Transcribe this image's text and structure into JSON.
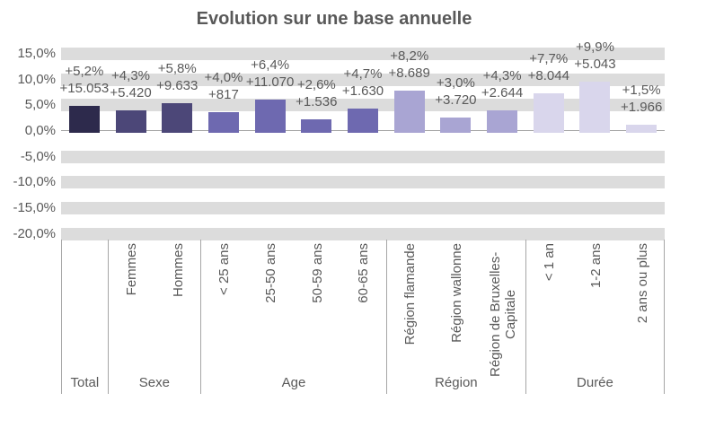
{
  "chart_data": {
    "type": "bar",
    "title": "Evolution sur une base annuelle",
    "ylabel": "",
    "ylim": [
      -20,
      15
    ],
    "ytick_step": 5,
    "yticks": [
      "15,0%",
      "10,0%",
      "5,0%",
      "0,0%",
      "-5,0%",
      "-10,0%",
      "-15,0%",
      "-20,0%"
    ],
    "grid": "horizontal-bands",
    "legend": "none",
    "colors": {
      "band": "#dcdcdc",
      "axis_line": "#a6a6a6",
      "separator_line": "#a6a6a6",
      "text": "#595959"
    },
    "groups": [
      {
        "label": "Total",
        "color": "#2d2a4c",
        "bars": [
          {
            "category": "",
            "pct": 5.2,
            "pct_label": "+5,2%",
            "count_label": "+15.053"
          }
        ]
      },
      {
        "label": "Sexe",
        "color": "#4c4778",
        "bars": [
          {
            "category": "Femmes",
            "pct": 4.3,
            "pct_label": "+4,3%",
            "count_label": "+5.420"
          },
          {
            "category": "Hommes",
            "pct": 5.8,
            "pct_label": "+5,8%",
            "count_label": "+9.633"
          }
        ]
      },
      {
        "label": "Age",
        "color": "#6e69b0",
        "bars": [
          {
            "category": "< 25 ans",
            "pct": 4.0,
            "pct_label": "+4,0%",
            "count_label": "+817"
          },
          {
            "category": "25-50 ans",
            "pct": 6.4,
            "pct_label": "+6,4%",
            "count_label": "+11.070"
          },
          {
            "category": "50-59 ans",
            "pct": 2.6,
            "pct_label": "+2,6%",
            "count_label": "+1.536"
          },
          {
            "category": "60-65 ans",
            "pct": 4.7,
            "pct_label": "+4,7%",
            "count_label": "+1.630"
          }
        ]
      },
      {
        "label": "Région",
        "color": "#a9a5d3",
        "bars": [
          {
            "category": "Région flamande",
            "pct": 8.2,
            "pct_label": "+8,2%",
            "count_label": "+8.689"
          },
          {
            "category": "Région wallonne",
            "pct": 3.0,
            "pct_label": "+3,0%",
            "count_label": "+3.720"
          },
          {
            "category": "Région de Bruxelles-Capitale",
            "pct": 4.3,
            "pct_label": "+4,3%",
            "count_label": "+2.644"
          }
        ]
      },
      {
        "label": "Durée",
        "color": "#d9d6ec",
        "bars": [
          {
            "category": "< 1 an",
            "pct": 7.7,
            "pct_label": "+7,7%",
            "count_label": "+8.044"
          },
          {
            "category": "1-2 ans",
            "pct": 9.9,
            "pct_label": "+9,9%",
            "count_label": "+5.043"
          },
          {
            "category": "2 ans ou plus",
            "pct": 1.5,
            "pct_label": "+1,5%",
            "count_label": "+1.966"
          }
        ]
      }
    ]
  }
}
